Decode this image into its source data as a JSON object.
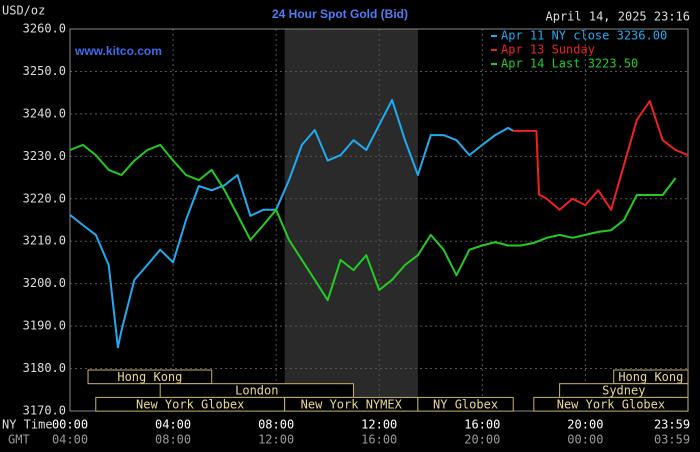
{
  "chart_data": {
    "type": "line",
    "title": "24 Hour Spot Gold (Bid)",
    "timestamp": "April 14, 2025 23:16",
    "watermark": "www.kitco.com",
    "y_label": "USD/oz",
    "x_label": "NY Time",
    "x2_label": "GMT",
    "xlim": [
      0,
      23.983
    ],
    "xticks": [
      {
        "value": 0,
        "label": "00:00"
      },
      {
        "value": 4,
        "label": "04:00"
      },
      {
        "value": 8,
        "label": "08:00"
      },
      {
        "value": 12,
        "label": "12:00"
      },
      {
        "value": 16,
        "label": "16:00"
      },
      {
        "value": 20,
        "label": "20:00"
      },
      {
        "value": 23.983,
        "label": "23:59"
      }
    ],
    "x2ticks": [
      {
        "value": 0,
        "label": "04:00"
      },
      {
        "value": 4,
        "label": "08:00"
      },
      {
        "value": 8,
        "label": "12:00"
      },
      {
        "value": 12,
        "label": "16:00"
      },
      {
        "value": 16,
        "label": "20:00"
      },
      {
        "value": 20,
        "label": "00:00"
      },
      {
        "value": 23.983,
        "label": "03:59"
      }
    ],
    "ylim": [
      3170,
      3260
    ],
    "yticks": [
      {
        "value": 3170,
        "label": "3170.0"
      },
      {
        "value": 3180,
        "label": "3180.0"
      },
      {
        "value": 3190,
        "label": "3190.0"
      },
      {
        "value": 3200,
        "label": "3200.0"
      },
      {
        "value": 3210,
        "label": "3210.0"
      },
      {
        "value": 3220,
        "label": "3220.0"
      },
      {
        "value": 3230,
        "label": "3230.0"
      },
      {
        "value": 3240,
        "label": "3240.0"
      },
      {
        "value": 3250,
        "label": "3250.0"
      },
      {
        "value": 3260,
        "label": "3260.0"
      }
    ],
    "grid": true,
    "shaded": [
      8.33,
      13.5
    ],
    "series": [
      {
        "name": "Apr 11 NY close 3236.00",
        "color": "#22aaee",
        "x": [
          0,
          0.5,
          1,
          1.5,
          1.86,
          2,
          2.5,
          3,
          3.5,
          4,
          4.5,
          5,
          5.5,
          6,
          6.5,
          7,
          7.5,
          8,
          8.5,
          9,
          9.5,
          10,
          10.5,
          11,
          11.5,
          12,
          12.5,
          13,
          13.5,
          14,
          14.5,
          15,
          15.5,
          16,
          16.5,
          17,
          17.2
        ],
        "values": [
          3216.2,
          3213.8,
          3211.5,
          3204.4,
          3185,
          3189,
          3200.9,
          3204.4,
          3208,
          3205,
          3215,
          3223,
          3222,
          3223.2,
          3225.6,
          3216,
          3217.4,
          3217.4,
          3224.4,
          3232.7,
          3236.2,
          3229,
          3230.3,
          3233.8,
          3231.5,
          3237.4,
          3243.3,
          3233.8,
          3225.6,
          3235,
          3235,
          3233.8,
          3230.3,
          3232.7,
          3235,
          3236.7,
          3236
        ]
      },
      {
        "name": "Apr 13 Sunday",
        "color": "#ee2222",
        "x": [
          17.2,
          18.1,
          18.2,
          18.5,
          19,
          19.5,
          20,
          20.5,
          21,
          21.5,
          22,
          22.5,
          23,
          23.5,
          23.983
        ],
        "values": [
          3236,
          3236,
          3221,
          3220,
          3217.4,
          3220,
          3218.5,
          3222,
          3217.4,
          3228,
          3238.6,
          3243,
          3233.8,
          3231.5,
          3230.3
        ]
      },
      {
        "name": "Apr 14 Last 3223.50",
        "color": "#22cc22",
        "x": [
          0,
          0.5,
          1,
          1.5,
          2,
          2.5,
          3,
          3.5,
          4,
          4.5,
          5,
          5.5,
          6,
          6.5,
          7,
          7.5,
          8,
          8.5,
          9,
          9.5,
          10,
          10.5,
          11,
          11.5,
          12,
          12.5,
          13,
          13.5,
          14,
          14.5,
          15,
          15.5,
          16,
          16.5,
          17,
          17.5,
          18,
          18.5,
          19,
          19.5,
          20,
          20.5,
          21,
          21.5,
          22,
          22.5,
          23,
          23.5
        ],
        "values": [
          3231.5,
          3232.7,
          3230.3,
          3226.8,
          3225.6,
          3229,
          3231.5,
          3232.7,
          3229,
          3225.6,
          3224.4,
          3226.8,
          3222,
          3216.2,
          3210.3,
          3213.8,
          3217.4,
          3210.3,
          3205.6,
          3200.9,
          3196.1,
          3205.6,
          3203.2,
          3206.7,
          3198.5,
          3200.9,
          3204.4,
          3206.7,
          3211.5,
          3208,
          3202,
          3208,
          3209,
          3209.8,
          3209,
          3209,
          3209.6,
          3210.8,
          3211.5,
          3210.8,
          3211.5,
          3212.2,
          3212.6,
          3215,
          3220.9,
          3220.9,
          3220.9,
          3224.9
        ]
      }
    ],
    "session_rows": [
      [
        {
          "label": "Hong Kong",
          "start": 0.7,
          "end": 5.5
        },
        {
          "label": "Hong Kong",
          "start": 21.1,
          "end": 23.983
        }
      ],
      [
        {
          "label": "London",
          "start": 3.5,
          "end": 11
        },
        {
          "label": "Sydney",
          "start": 19,
          "end": 23.983
        }
      ],
      [
        {
          "label": "New York Globex",
          "start": 1,
          "end": 8.33
        },
        {
          "label": "New York NYMEX",
          "start": 8.33,
          "end": 13.5
        },
        {
          "label": "NY Globex",
          "start": 13.5,
          "end": 17.2
        },
        {
          "label": "New York Globex",
          "start": 18,
          "end": 23.983
        }
      ]
    ]
  }
}
